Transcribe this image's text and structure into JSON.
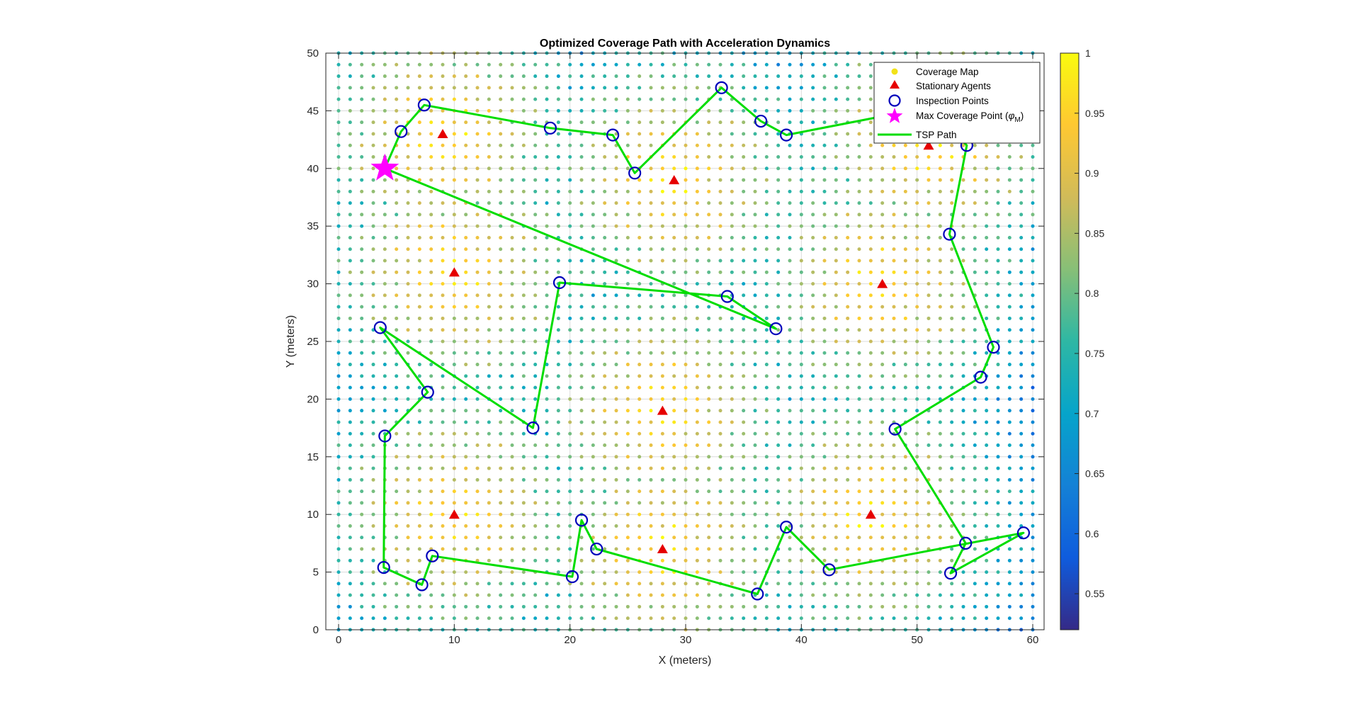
{
  "chart_data": {
    "type": "scatter",
    "title": "Optimized Coverage Path with Acceleration Dynamics",
    "xlabel": "X (meters)",
    "ylabel": "Y (meters)",
    "xlim": [
      0,
      60
    ],
    "ylim": [
      0,
      50
    ],
    "x_ticks": [
      "0",
      "10",
      "20",
      "30",
      "40",
      "50",
      "60"
    ],
    "y_ticks": [
      "0",
      "5",
      "10",
      "15",
      "20",
      "25",
      "30",
      "35",
      "40",
      "45",
      "50"
    ],
    "grid": true,
    "legend_position": "top-right",
    "legend": [
      {
        "label": "Coverage Map",
        "marker": "dot",
        "color": "#f2e218"
      },
      {
        "label": "Stationary Agents",
        "marker": "triangle",
        "color": "#e60000"
      },
      {
        "label": "Inspection Points",
        "marker": "circle",
        "color": "#0000bb"
      },
      {
        "label": "Max Coverage Point (",
        "label_sym": "φ",
        "label_sub": "M",
        "label_end": ")",
        "marker": "star",
        "color": "#ff00ff"
      },
      {
        "label": "TSP Path",
        "marker": "line",
        "color": "#00dd00"
      }
    ],
    "colorbar": {
      "min": 0.52,
      "max": 1.0,
      "ticks": [
        "0.55",
        "0.6",
        "0.65",
        "0.7",
        "0.75",
        "0.8",
        "0.85",
        "0.9",
        "0.95",
        "1"
      ]
    },
    "coverage_map": {
      "x_step": 1,
      "y_step": 1,
      "x_range": [
        0,
        60
      ],
      "y_range": [
        0,
        50
      ],
      "description_values": "value near 1 close to stationary agents, lower far away"
    },
    "stationary_agents": [
      [
        9,
        43
      ],
      [
        29,
        39
      ],
      [
        51,
        42
      ],
      [
        10,
        31
      ],
      [
        47,
        30
      ],
      [
        28,
        19
      ],
      [
        10,
        10
      ],
      [
        28,
        7
      ],
      [
        46,
        10
      ]
    ],
    "max_coverage_point": [
      4,
      40
    ],
    "tsp_path": [
      [
        4,
        40
      ],
      [
        5.4,
        43.2
      ],
      [
        7.4,
        45.5
      ],
      [
        18.3,
        43.5
      ],
      [
        23.7,
        42.9
      ],
      [
        25.6,
        39.6
      ],
      [
        33.1,
        47
      ],
      [
        36.5,
        44.1
      ],
      [
        38.7,
        42.9
      ],
      [
        51,
        45.3
      ],
      [
        54.3,
        42
      ],
      [
        52.8,
        34.3
      ],
      [
        56.6,
        24.5
      ],
      [
        55.5,
        21.9
      ],
      [
        48.1,
        17.4
      ],
      [
        54.2,
        7.5
      ],
      [
        52.9,
        4.9
      ],
      [
        59.2,
        8.4
      ],
      [
        42.4,
        5.2
      ],
      [
        38.7,
        8.9
      ],
      [
        36.2,
        3.1
      ],
      [
        22.3,
        7
      ],
      [
        21,
        9.5
      ],
      [
        20.2,
        4.6
      ],
      [
        8.1,
        6.4
      ],
      [
        7.2,
        3.9
      ],
      [
        3.9,
        5.4
      ],
      [
        4,
        16.8
      ],
      [
        7.7,
        20.6
      ],
      [
        3.6,
        26.2
      ],
      [
        16.8,
        17.5
      ],
      [
        19.1,
        30.1
      ],
      [
        33.6,
        28.9
      ],
      [
        37.8,
        26.1
      ],
      [
        4,
        40
      ]
    ]
  }
}
